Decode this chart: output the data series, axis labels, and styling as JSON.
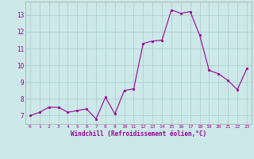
{
  "x": [
    0,
    1,
    2,
    3,
    4,
    5,
    6,
    7,
    8,
    9,
    10,
    11,
    12,
    13,
    14,
    15,
    16,
    17,
    18,
    19,
    20,
    21,
    22,
    23
  ],
  "y": [
    7.0,
    7.2,
    7.5,
    7.5,
    7.2,
    7.3,
    7.4,
    6.8,
    8.1,
    7.1,
    8.5,
    8.6,
    11.3,
    11.45,
    11.5,
    13.3,
    13.1,
    13.2,
    11.8,
    9.7,
    9.5,
    9.1,
    8.55,
    9.8
  ],
  "line_color": "#990099",
  "marker_color": "#990099",
  "bg_color": "#cce8e8",
  "grid_color": "#aacccc",
  "tick_color": "#990099",
  "xlabel": "Windchill (Refroidissement éolien,°C)",
  "ylim": [
    6.5,
    13.8
  ],
  "xlim": [
    -0.5,
    23.5
  ],
  "yticks": [
    7,
    8,
    9,
    10,
    11,
    12,
    13
  ],
  "xticks": [
    0,
    1,
    2,
    3,
    4,
    5,
    6,
    7,
    8,
    9,
    10,
    11,
    12,
    13,
    14,
    15,
    16,
    17,
    18,
    19,
    20,
    21,
    22,
    23
  ]
}
